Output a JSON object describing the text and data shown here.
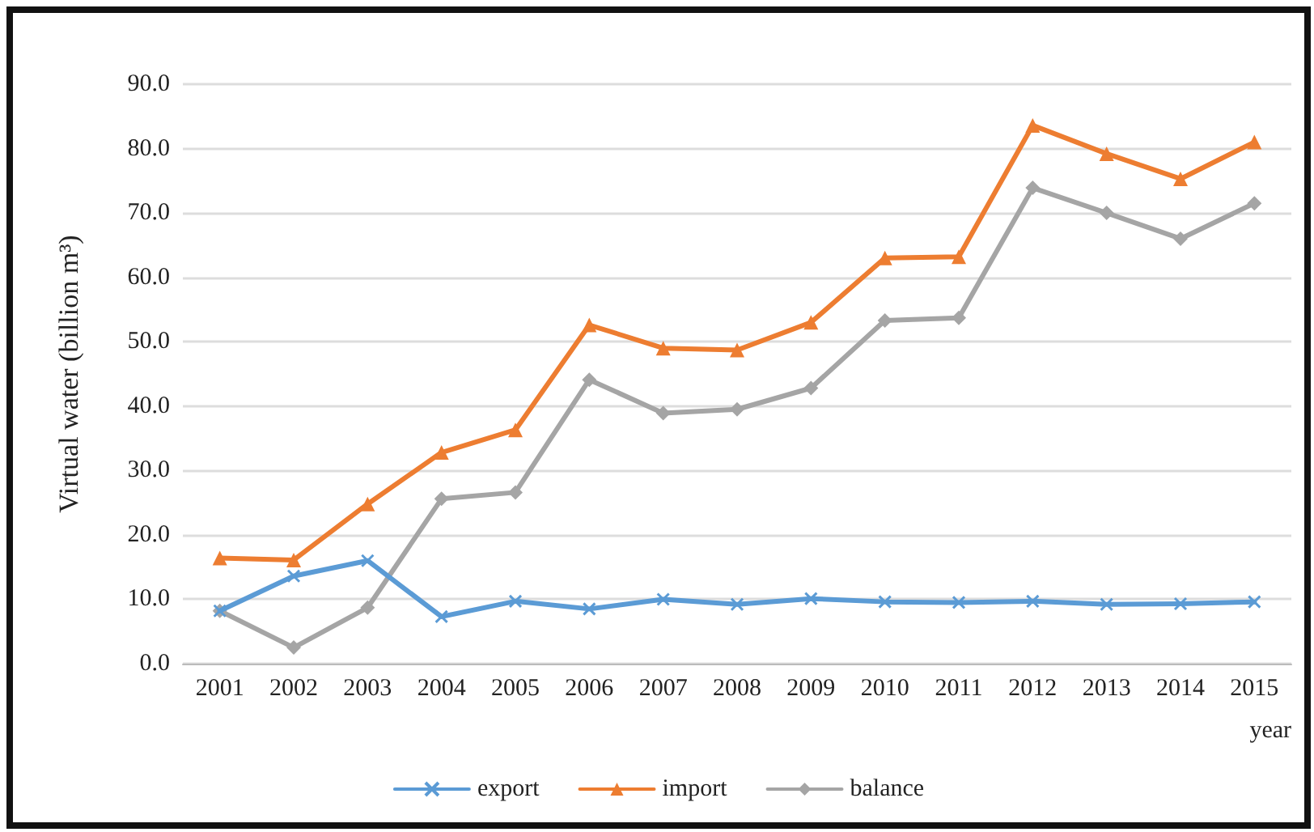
{
  "chart_data": {
    "type": "line",
    "xlabel": "year",
    "ylabel": "Virtual water (billion m³)",
    "categories": [
      "2001",
      "2002",
      "2003",
      "2004",
      "2005",
      "2006",
      "2007",
      "2008",
      "2009",
      "2010",
      "2011",
      "2012",
      "2013",
      "2014",
      "2015"
    ],
    "series": [
      {
        "name": "export",
        "color": "#5b9bd5",
        "marker": "cross",
        "values": [
          8.2,
          13.6,
          16.0,
          7.3,
          9.7,
          8.5,
          10.0,
          9.2,
          10.1,
          9.6,
          9.5,
          9.7,
          9.2,
          9.3,
          9.6
        ]
      },
      {
        "name": "import",
        "color": "#ed7d31",
        "marker": "triangle",
        "values": [
          16.4,
          16.1,
          24.8,
          32.8,
          36.3,
          52.6,
          49.0,
          48.7,
          53.0,
          63.0,
          63.2,
          83.6,
          79.2,
          75.3,
          81.0
        ]
      },
      {
        "name": "balance",
        "color": "#a5a5a5",
        "marker": "diamond",
        "values": [
          8.2,
          2.5,
          8.7,
          25.6,
          26.6,
          44.1,
          38.9,
          39.5,
          42.8,
          53.3,
          53.7,
          73.9,
          70.0,
          66.0,
          71.5
        ]
      }
    ],
    "ylim": [
      0,
      90
    ],
    "yticks": [
      {
        "value": 0,
        "label": "0.0"
      },
      {
        "value": 10,
        "label": "10.0"
      },
      {
        "value": 20,
        "label": "20.0"
      },
      {
        "value": 30,
        "label": "30.0"
      },
      {
        "value": 40,
        "label": "40.0"
      },
      {
        "value": 50,
        "label": "50.0"
      },
      {
        "value": 60,
        "label": "60.0"
      },
      {
        "value": 70,
        "label": "70.0"
      },
      {
        "value": 80,
        "label": "80.0"
      },
      {
        "value": 90,
        "label": "90.0"
      }
    ],
    "grid": "y",
    "legend": "bottom",
    "line_style": "solid"
  }
}
